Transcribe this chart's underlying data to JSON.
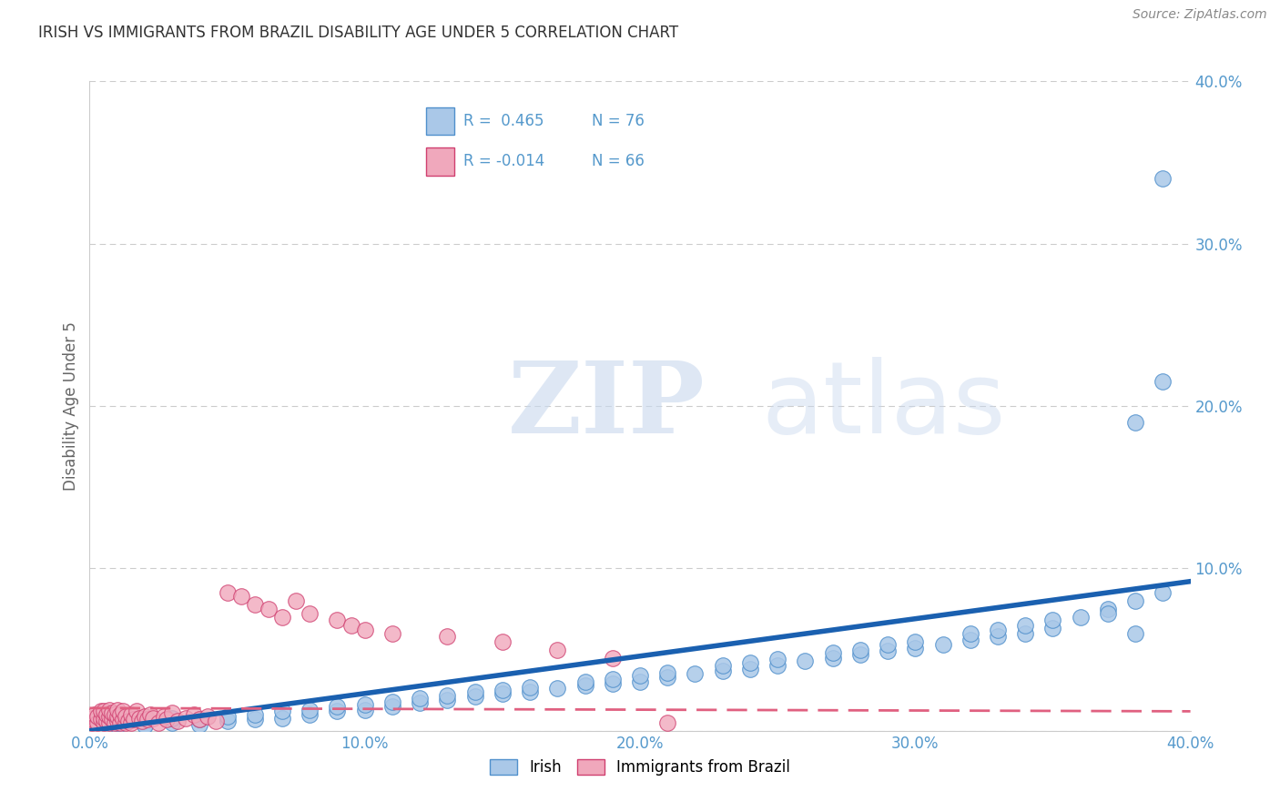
{
  "title": "IRISH VS IMMIGRANTS FROM BRAZIL DISABILITY AGE UNDER 5 CORRELATION CHART",
  "source": "Source: ZipAtlas.com",
  "ylabel": "Disability Age Under 5",
  "xlim": [
    0.0,
    0.4
  ],
  "ylim": [
    0.0,
    0.4
  ],
  "xticks": [
    0.0,
    0.1,
    0.2,
    0.3,
    0.4
  ],
  "yticks": [
    0.0,
    0.1,
    0.2,
    0.3,
    0.4
  ],
  "xtick_labels": [
    "0.0%",
    "10.0%",
    "20.0%",
    "30.0%",
    "40.0%"
  ],
  "ytick_labels": [
    "",
    "10.0%",
    "20.0%",
    "30.0%",
    "40.0%"
  ],
  "irish_color": "#aac8e8",
  "brazil_color": "#f0a8bc",
  "irish_edge_color": "#5090cc",
  "brazil_edge_color": "#d04070",
  "trendline_irish_color": "#1a60b0",
  "trendline_brazil_color": "#e06080",
  "irish_R": 0.465,
  "irish_N": 76,
  "brazil_R": -0.014,
  "brazil_N": 66,
  "irish_trend_x0": 0.0,
  "irish_trend_y0": 0.0,
  "irish_trend_x1": 0.4,
  "irish_trend_y1": 0.092,
  "brazil_trend_x0": 0.0,
  "brazil_trend_y0": 0.014,
  "brazil_trend_x1": 0.4,
  "brazil_trend_y1": 0.012,
  "irish_x": [
    0.01,
    0.01,
    0.02,
    0.02,
    0.02,
    0.03,
    0.03,
    0.04,
    0.04,
    0.05,
    0.05,
    0.06,
    0.06,
    0.07,
    0.07,
    0.08,
    0.08,
    0.09,
    0.09,
    0.1,
    0.1,
    0.11,
    0.11,
    0.12,
    0.12,
    0.13,
    0.13,
    0.14,
    0.14,
    0.15,
    0.15,
    0.16,
    0.16,
    0.17,
    0.18,
    0.18,
    0.19,
    0.19,
    0.2,
    0.2,
    0.21,
    0.21,
    0.22,
    0.23,
    0.23,
    0.24,
    0.24,
    0.25,
    0.25,
    0.26,
    0.27,
    0.27,
    0.28,
    0.28,
    0.29,
    0.29,
    0.3,
    0.3,
    0.31,
    0.32,
    0.32,
    0.33,
    0.33,
    0.34,
    0.34,
    0.35,
    0.35,
    0.36,
    0.37,
    0.37,
    0.38,
    0.38,
    0.38,
    0.39,
    0.39,
    0.39
  ],
  "irish_y": [
    0.003,
    0.005,
    0.004,
    0.007,
    0.003,
    0.005,
    0.008,
    0.004,
    0.007,
    0.006,
    0.009,
    0.007,
    0.01,
    0.008,
    0.012,
    0.01,
    0.013,
    0.012,
    0.015,
    0.013,
    0.016,
    0.015,
    0.018,
    0.017,
    0.02,
    0.019,
    0.022,
    0.021,
    0.024,
    0.023,
    0.025,
    0.024,
    0.027,
    0.026,
    0.028,
    0.03,
    0.029,
    0.032,
    0.03,
    0.034,
    0.033,
    0.036,
    0.035,
    0.037,
    0.04,
    0.038,
    0.042,
    0.04,
    0.044,
    0.043,
    0.045,
    0.048,
    0.047,
    0.05,
    0.049,
    0.053,
    0.051,
    0.055,
    0.053,
    0.056,
    0.06,
    0.058,
    0.062,
    0.06,
    0.065,
    0.063,
    0.068,
    0.07,
    0.075,
    0.072,
    0.08,
    0.06,
    0.19,
    0.215,
    0.085,
    0.34
  ],
  "brazil_x": [
    0.001,
    0.001,
    0.002,
    0.002,
    0.003,
    0.003,
    0.004,
    0.004,
    0.005,
    0.005,
    0.005,
    0.006,
    0.006,
    0.007,
    0.007,
    0.007,
    0.008,
    0.008,
    0.009,
    0.009,
    0.01,
    0.01,
    0.01,
    0.011,
    0.011,
    0.012,
    0.012,
    0.013,
    0.013,
    0.014,
    0.015,
    0.015,
    0.016,
    0.017,
    0.018,
    0.019,
    0.02,
    0.021,
    0.022,
    0.023,
    0.025,
    0.027,
    0.028,
    0.03,
    0.032,
    0.035,
    0.038,
    0.04,
    0.043,
    0.046,
    0.05,
    0.055,
    0.06,
    0.065,
    0.07,
    0.075,
    0.08,
    0.09,
    0.095,
    0.1,
    0.11,
    0.13,
    0.15,
    0.17,
    0.19,
    0.21
  ],
  "brazil_y": [
    0.005,
    0.008,
    0.006,
    0.01,
    0.005,
    0.009,
    0.007,
    0.012,
    0.005,
    0.008,
    0.012,
    0.006,
    0.01,
    0.005,
    0.009,
    0.013,
    0.007,
    0.011,
    0.005,
    0.01,
    0.006,
    0.009,
    0.013,
    0.005,
    0.01,
    0.007,
    0.012,
    0.005,
    0.009,
    0.006,
    0.005,
    0.01,
    0.007,
    0.012,
    0.008,
    0.006,
    0.009,
    0.007,
    0.01,
    0.008,
    0.005,
    0.009,
    0.007,
    0.011,
    0.006,
    0.008,
    0.01,
    0.007,
    0.009,
    0.006,
    0.085,
    0.083,
    0.078,
    0.075,
    0.07,
    0.08,
    0.072,
    0.068,
    0.065,
    0.062,
    0.06,
    0.058,
    0.055,
    0.05,
    0.045,
    0.005
  ]
}
